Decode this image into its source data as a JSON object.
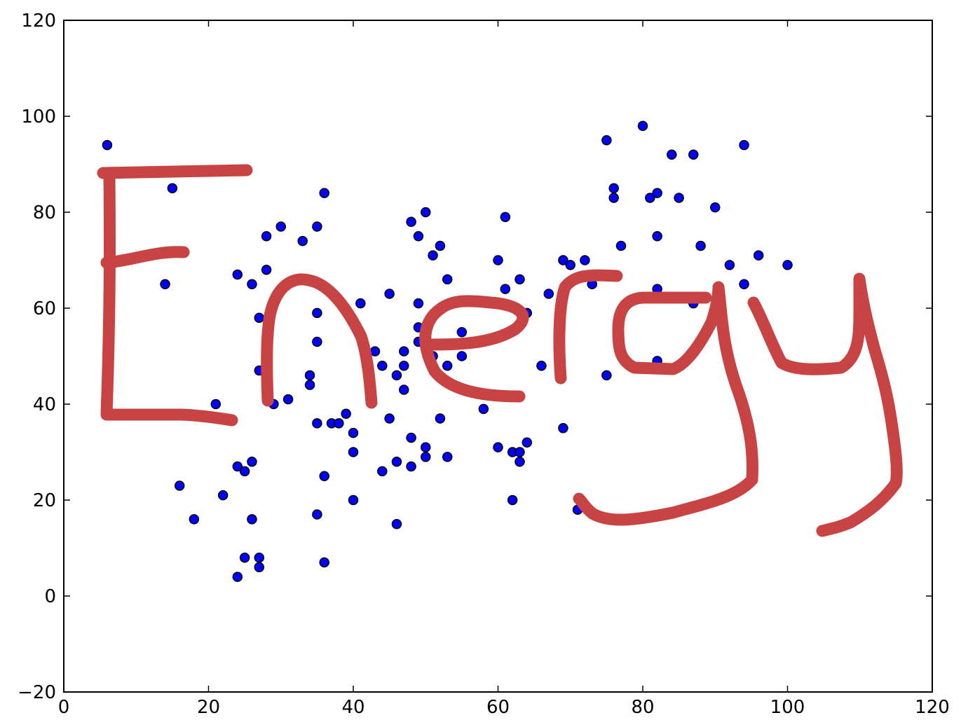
{
  "colors": {
    "marker": "#0000ff",
    "marker_edge": "#000000",
    "annotation": "#c84444",
    "background": "#ffffff"
  },
  "annotation": {
    "text": "Energy",
    "style": "handwritten"
  },
  "chart_data": {
    "type": "scatter",
    "title": "",
    "xlabel": "",
    "ylabel": "",
    "xlim": [
      0,
      120
    ],
    "ylim": [
      -20,
      120
    ],
    "grid": false,
    "xticks": [
      0,
      20,
      40,
      60,
      80,
      100,
      120
    ],
    "yticks": [
      -20,
      0,
      20,
      40,
      60,
      80,
      100,
      120
    ],
    "xtick_labels": [
      "0",
      "20",
      "40",
      "60",
      "80",
      "100",
      "120"
    ],
    "ytick_labels": [
      "−20",
      "0",
      "20",
      "40",
      "60",
      "80",
      "100",
      "120"
    ],
    "series": [
      {
        "points": [
          [
            6,
            94
          ],
          [
            15,
            85
          ],
          [
            14,
            65
          ],
          [
            16,
            23
          ],
          [
            18,
            16
          ],
          [
            21,
            40
          ],
          [
            22,
            21
          ],
          [
            24,
            67
          ],
          [
            24,
            27
          ],
          [
            24,
            4
          ],
          [
            25,
            26
          ],
          [
            25,
            8
          ],
          [
            26,
            65
          ],
          [
            26,
            28
          ],
          [
            26,
            16
          ],
          [
            27,
            58
          ],
          [
            27,
            47
          ],
          [
            27,
            8
          ],
          [
            27,
            6
          ],
          [
            28,
            75
          ],
          [
            28,
            68
          ],
          [
            29,
            40
          ],
          [
            30,
            77
          ],
          [
            31,
            41
          ],
          [
            33,
            74
          ],
          [
            34,
            46
          ],
          [
            34,
            44
          ],
          [
            35,
            77
          ],
          [
            35,
            59
          ],
          [
            35,
            53
          ],
          [
            35,
            36
          ],
          [
            35,
            17
          ],
          [
            36,
            84
          ],
          [
            36,
            25
          ],
          [
            36,
            7
          ],
          [
            37,
            36
          ],
          [
            38,
            36
          ],
          [
            39,
            38
          ],
          [
            40,
            34
          ],
          [
            40,
            30
          ],
          [
            40,
            20
          ],
          [
            41,
            61
          ],
          [
            43,
            51
          ],
          [
            44,
            48
          ],
          [
            44,
            26
          ],
          [
            45,
            63
          ],
          [
            45,
            37
          ],
          [
            46,
            46
          ],
          [
            46,
            28
          ],
          [
            46,
            15
          ],
          [
            47,
            51
          ],
          [
            47,
            48
          ],
          [
            47,
            43
          ],
          [
            48,
            78
          ],
          [
            48,
            33
          ],
          [
            48,
            27
          ],
          [
            49,
            75
          ],
          [
            49,
            61
          ],
          [
            49,
            56
          ],
          [
            49,
            53
          ],
          [
            50,
            80
          ],
          [
            50,
            31
          ],
          [
            50,
            29
          ],
          [
            51,
            71
          ],
          [
            51,
            50
          ],
          [
            52,
            73
          ],
          [
            52,
            37
          ],
          [
            53,
            66
          ],
          [
            53,
            48
          ],
          [
            53,
            29
          ],
          [
            55,
            55
          ],
          [
            55,
            50
          ],
          [
            58,
            39
          ],
          [
            60,
            70
          ],
          [
            60,
            31
          ],
          [
            61,
            79
          ],
          [
            61,
            64
          ],
          [
            62,
            30
          ],
          [
            62,
            20
          ],
          [
            63,
            66
          ],
          [
            63,
            30
          ],
          [
            63,
            28
          ],
          [
            64,
            59
          ],
          [
            64,
            32
          ],
          [
            66,
            48
          ],
          [
            67,
            63
          ],
          [
            69,
            70
          ],
          [
            69,
            35
          ],
          [
            70,
            69
          ],
          [
            71,
            18
          ],
          [
            72,
            70
          ],
          [
            73,
            65
          ],
          [
            75,
            95
          ],
          [
            75,
            46
          ],
          [
            76,
            85
          ],
          [
            76,
            83
          ],
          [
            77,
            73
          ],
          [
            80,
            98
          ],
          [
            81,
            83
          ],
          [
            82,
            84
          ],
          [
            82,
            75
          ],
          [
            82,
            64
          ],
          [
            82,
            49
          ],
          [
            84,
            92
          ],
          [
            85,
            83
          ],
          [
            87,
            92
          ],
          [
            87,
            61
          ],
          [
            88,
            73
          ],
          [
            90,
            81
          ],
          [
            92,
            69
          ],
          [
            94,
            94
          ],
          [
            94,
            65
          ],
          [
            96,
            71
          ],
          [
            100,
            69
          ]
        ]
      }
    ]
  }
}
